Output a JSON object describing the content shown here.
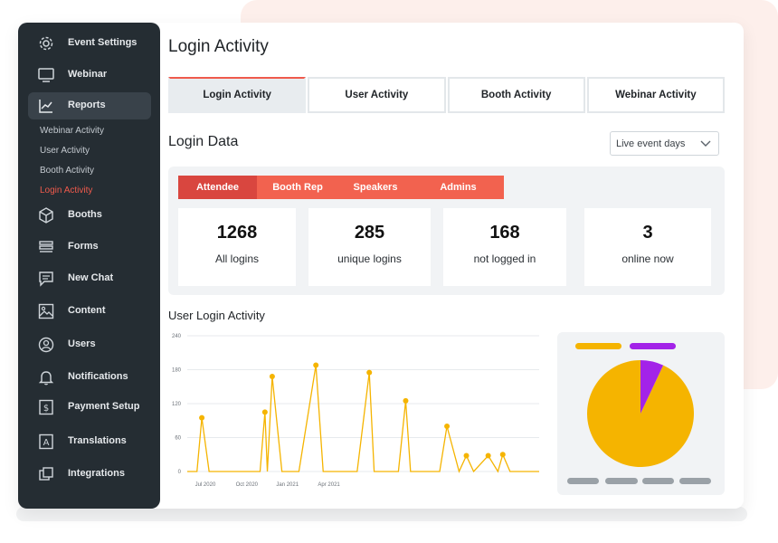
{
  "sidebar": {
    "items": [
      {
        "label": "Event Settings",
        "icon": "gear-icon"
      },
      {
        "label": "Webinar",
        "icon": "monitor-icon"
      },
      {
        "label": "Reports",
        "icon": "trend-chart-icon"
      },
      {
        "label": "Booths",
        "icon": "cube-icon"
      },
      {
        "label": "Forms",
        "icon": "form-icon"
      },
      {
        "label": "New Chat",
        "icon": "chat-icon"
      },
      {
        "label": "Content",
        "icon": "image-icon"
      },
      {
        "label": "Users",
        "icon": "user-icon"
      },
      {
        "label": "Notifications",
        "icon": "bell-icon"
      },
      {
        "label": "Payment Setup",
        "icon": "dollar-icon"
      },
      {
        "label": "Translations",
        "icon": "translate-icon"
      },
      {
        "label": "Integrations",
        "icon": "integrations-icon"
      }
    ],
    "sub_items": [
      "Webinar Activity",
      "User Activity",
      "Booth Activity",
      "Login Activity"
    ]
  },
  "page": {
    "title": "Login Activity",
    "tabs": [
      "Login Activity",
      "User Activity",
      "Booth Activity",
      "Webinar Activity"
    ],
    "section_title": "Login Data",
    "dropdown_value": "Live event days"
  },
  "segments": [
    "Attendee",
    "Booth Rep",
    "Speakers",
    "Admins"
  ],
  "stats": [
    {
      "value": "1268",
      "label": "All logins"
    },
    {
      "value": "285",
      "label": "unique logins"
    },
    {
      "value": "168",
      "label": "not logged in"
    },
    {
      "value": "3",
      "label": "online now"
    }
  ],
  "colors": {
    "accent": "#ef5a4c",
    "line": "#f5b400",
    "purple": "#a323e8",
    "sidebar_bg": "#252d33"
  },
  "chart_data": [
    {
      "type": "line",
      "title": "User Login Activity",
      "ylim": [
        0,
        240
      ],
      "yticks": [
        "0",
        "60",
        "120",
        "180",
        "240"
      ],
      "xticks": [
        "Jul 2020",
        "Oct 2020",
        "Jan 2021",
        "Apr 2021"
      ],
      "x": [
        0,
        4,
        6,
        9,
        28,
        30,
        32,
        33,
        35,
        39,
        43,
        46,
        53,
        56,
        60,
        70,
        75,
        77,
        83,
        87,
        90,
        92,
        98,
        104,
        107,
        112,
        115,
        118,
        124,
        128,
        130,
        133,
        135,
        138,
        140,
        142,
        145
      ],
      "values": [
        0,
        0,
        95,
        0,
        0,
        0,
        105,
        0,
        168,
        0,
        0,
        0,
        188,
        0,
        0,
        0,
        175,
        0,
        0,
        0,
        125,
        0,
        0,
        0,
        80,
        0,
        28,
        0,
        28,
        0,
        30,
        0,
        0,
        0,
        0,
        0,
        0
      ],
      "markers": [
        2,
        6,
        8,
        12,
        16,
        20,
        24,
        26,
        28,
        30
      ]
    },
    {
      "type": "pie",
      "series": [
        {
          "name": "",
          "value": 93,
          "color": "#f5b400"
        },
        {
          "name": "",
          "value": 7,
          "color": "#a323e8"
        }
      ]
    }
  ]
}
